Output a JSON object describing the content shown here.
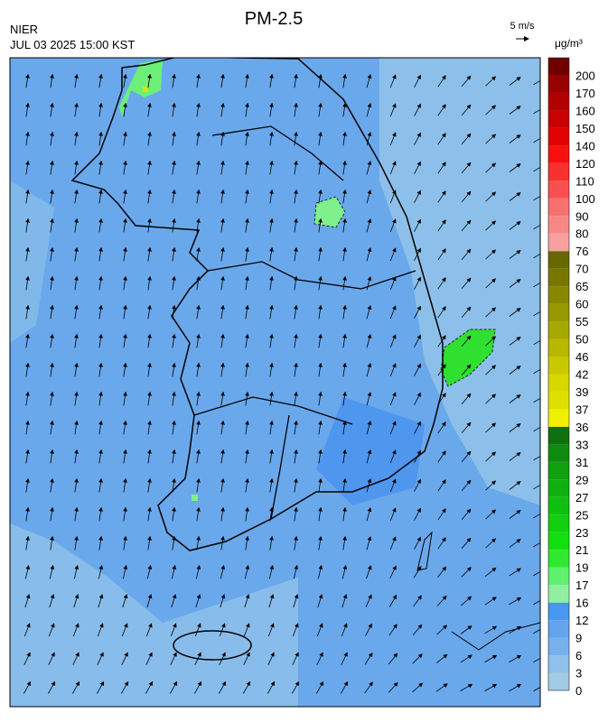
{
  "header": {
    "title": "PM-2.5",
    "agency": "NIER",
    "datetime": "JUL 03 2025 15:00 KST",
    "wind_scale": "5 m/s",
    "unit": "μg/m³"
  },
  "colorbar": {
    "labels": [
      0,
      3,
      6,
      9,
      12,
      16,
      17,
      19,
      21,
      23,
      25,
      27,
      29,
      31,
      33,
      36,
      37,
      39,
      42,
      46,
      50,
      55,
      60,
      65,
      70,
      76,
      80,
      90,
      100,
      110,
      120,
      140,
      150,
      160,
      170,
      200
    ],
    "colors": [
      "#a0cce4",
      "#90c0ec",
      "#78b0ec",
      "#64a4ee",
      "#4898f0",
      "#90f0a0",
      "#60f070",
      "#30e830",
      "#10e010",
      "#10d010",
      "#10c010",
      "#10b010",
      "#10a010",
      "#108a10",
      "#107010",
      "#f0f000",
      "#e0e000",
      "#d8d800",
      "#c8c800",
      "#b8b800",
      "#a8a800",
      "#989800",
      "#888800",
      "#787800",
      "#686800",
      "#f8a0a0",
      "#f88888",
      "#f87070",
      "#f85050",
      "#f83030",
      "#f81010",
      "#e00000",
      "#c80000",
      "#b00000",
      "#980000",
      "#700000"
    ]
  }
}
